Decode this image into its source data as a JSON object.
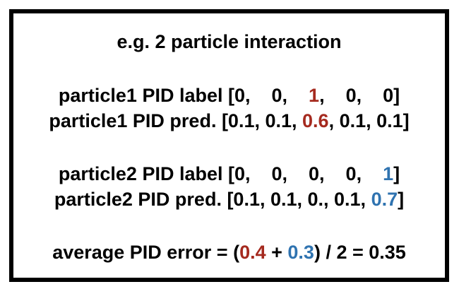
{
  "title": "e.g. 2 particle interaction",
  "particle1": {
    "label_prefix": "particle1 PID label [0,    0,    ",
    "label_highlight": "1",
    "label_suffix": ",    0,    0]",
    "pred_prefix": "particle1 PID pred. [0.1, 0.1, ",
    "pred_highlight": "0.6",
    "pred_suffix": ", 0.1, 0.1]"
  },
  "particle2": {
    "label_prefix": "particle2 PID label [0,    0,    0,    0,    ",
    "label_highlight": "1",
    "label_suffix": "]",
    "pred_prefix": "particle2 PID pred. [0.1, 0.1, 0., 0.1, ",
    "pred_highlight": "0.7",
    "pred_suffix": "]"
  },
  "average": {
    "prefix": "average PID error = (",
    "term1": "0.4",
    "plus": " + ",
    "term2": "0.3",
    "suffix": ") / 2 = 0.35"
  },
  "colors": {
    "particle1_highlight": "#a52a1f",
    "particle2_highlight": "#2f73b0",
    "border": "#000000"
  }
}
